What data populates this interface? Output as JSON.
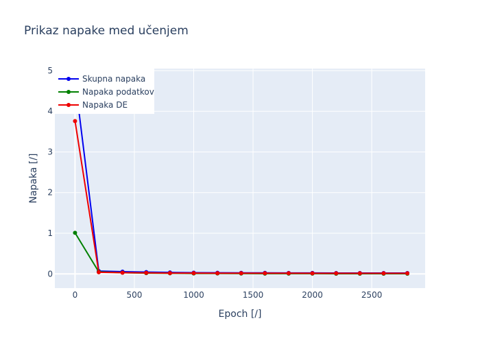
{
  "chart_data": {
    "type": "line",
    "title": "Prikaz napake med učenjem",
    "xlabel": "Epoch [/]",
    "ylabel": "Napaka [/]",
    "xlim": [
      -170,
      2950
    ],
    "ylim": [
      -0.35,
      5.05
    ],
    "xticks": [
      0,
      500,
      1000,
      1500,
      2000,
      2500
    ],
    "yticks": [
      0,
      1,
      2,
      3,
      4,
      5
    ],
    "grid": true,
    "legend_position": "top-left",
    "x": [
      0,
      200,
      400,
      600,
      800,
      1000,
      1200,
      1400,
      1600,
      1800,
      2000,
      2200,
      2400,
      2600,
      2800
    ],
    "series": [
      {
        "name": "Skupna napaka",
        "color": "#0000ee",
        "values": [
          4.77,
          0.07,
          0.055,
          0.045,
          0.035,
          0.03,
          0.028,
          0.026,
          0.025,
          0.024,
          0.023,
          0.022,
          0.022,
          0.021,
          0.021
        ]
      },
      {
        "name": "Napaka podatkov",
        "color": "#008000",
        "values": [
          1.01,
          0.05,
          0.03,
          0.02,
          0.015,
          0.01,
          0.01,
          0.008,
          0.007,
          0.006,
          0.006,
          0.005,
          0.005,
          0.005,
          0.005
        ]
      },
      {
        "name": "Napaka DE",
        "color": "#ee0000",
        "values": [
          3.76,
          0.04,
          0.03,
          0.025,
          0.02,
          0.02,
          0.018,
          0.017,
          0.016,
          0.016,
          0.015,
          0.015,
          0.015,
          0.015,
          0.015
        ]
      }
    ]
  }
}
